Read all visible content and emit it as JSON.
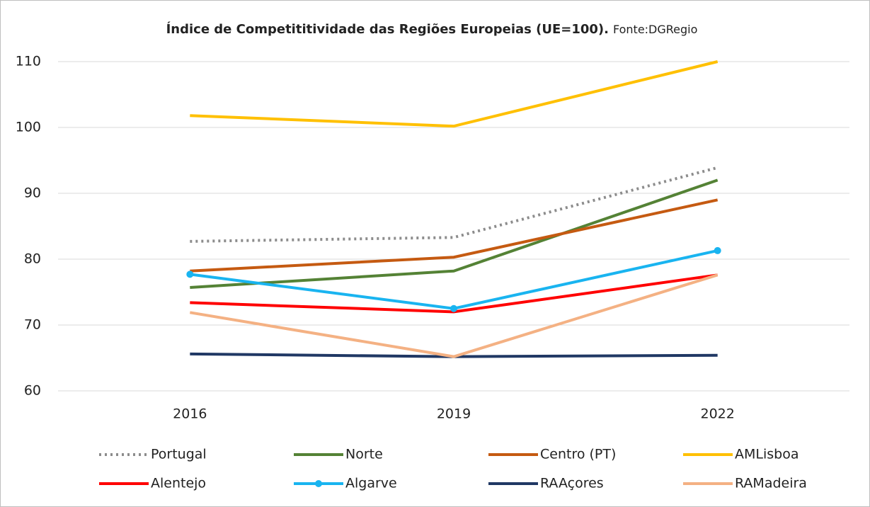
{
  "chart_data": {
    "type": "line",
    "title": "Índice de Competititividade das Regiões Europeias (UE=100).",
    "source": "Fonte:DGRegio",
    "categories": [
      "2016",
      "2019",
      "2022"
    ],
    "ylim": [
      60,
      110
    ],
    "yticks": [
      60,
      70,
      80,
      90,
      100,
      110
    ],
    "grid": true,
    "series": [
      {
        "name": "Portugal",
        "color": "#8c8c8c",
        "dash": "dotted",
        "values": [
          82.7,
          83.3,
          93.9
        ]
      },
      {
        "name": "Norte",
        "color": "#548235",
        "values": [
          75.7,
          78.2,
          92.0
        ]
      },
      {
        "name": "Centro (PT)",
        "color": "#c55a11",
        "values": [
          78.2,
          80.3,
          89.0
        ]
      },
      {
        "name": "AMLisboa",
        "color": "#ffc000",
        "values": [
          101.8,
          100.2,
          110
        ]
      },
      {
        "name": "Alentejo",
        "color": "#ff0000",
        "values": [
          73.4,
          72.0,
          77.6
        ]
      },
      {
        "name": "Algarve",
        "color": "#19b4f0",
        "marker": true,
        "values": [
          77.7,
          72.5,
          81.3
        ]
      },
      {
        "name": "RAAçores",
        "color": "#203864",
        "values": [
          65.6,
          65.2,
          65.4
        ]
      },
      {
        "name": "RAMadeira",
        "color": "#f4b183",
        "values": [
          71.9,
          65.2,
          77.6
        ]
      }
    ]
  }
}
